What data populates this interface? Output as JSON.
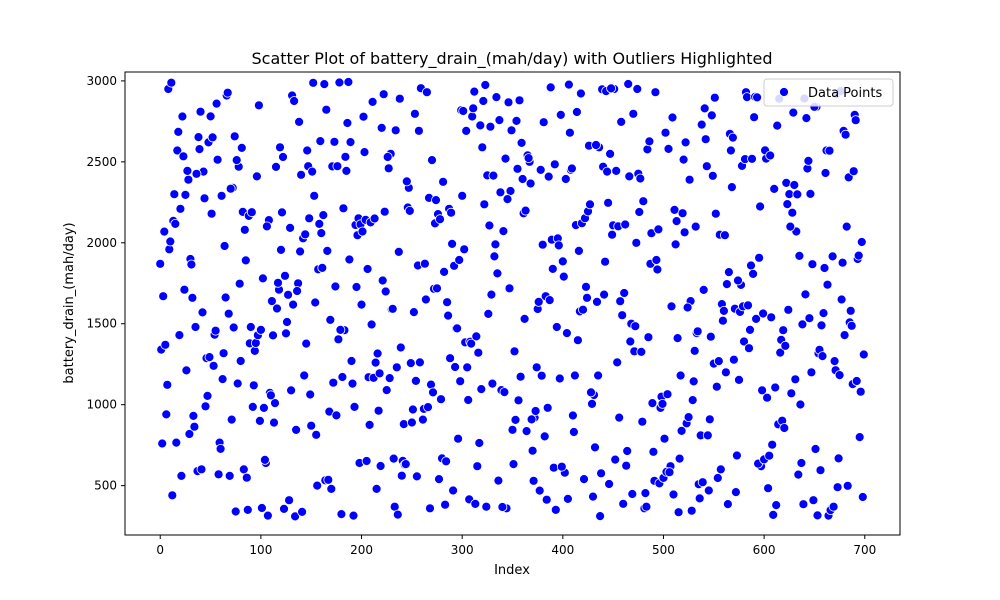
{
  "chart_data": {
    "type": "scatter",
    "title": "Scatter Plot of battery_drain_(mah/day) with Outliers Highlighted",
    "xlabel": "Index",
    "ylabel": "battery_drain_(mah/day)",
    "xlim": [
      -35,
      735
    ],
    "ylim": [
      195,
      3055
    ],
    "xticks": [
      0,
      100,
      200,
      300,
      400,
      500,
      600,
      700
    ],
    "yticks": [
      500,
      1000,
      1500,
      2000,
      2500,
      3000
    ],
    "grid": false,
    "legend": {
      "placement": "top-right",
      "entries": [
        "Data Points"
      ]
    },
    "colors": {
      "points": "#0000ff",
      "point_edge": "#ffffff"
    },
    "series": [
      {
        "name": "Data Points",
        "count": 700,
        "x_range": [
          0,
          699
        ],
        "y_range": [
          300,
          3000
        ],
        "sample_points": [
          [
            0,
            1870
          ],
          [
            1,
            1340
          ],
          [
            2,
            760
          ],
          [
            3,
            1670
          ],
          [
            5,
            1370
          ],
          [
            6,
            940
          ],
          [
            8,
            2950
          ],
          [
            9,
            1960
          ],
          [
            12,
            440
          ],
          [
            14,
            2300
          ],
          [
            17,
            2570
          ],
          [
            19,
            1430
          ],
          [
            21,
            560
          ],
          [
            22,
            2780
          ],
          [
            24,
            1710
          ],
          [
            28,
            2390
          ],
          [
            30,
            1900
          ],
          [
            32,
            1660
          ],
          [
            35,
            1480
          ],
          [
            37,
            590
          ],
          [
            40,
            2810
          ],
          [
            43,
            2440
          ],
          [
            45,
            990
          ],
          [
            48,
            2620
          ],
          [
            51,
            2180
          ],
          [
            53,
            1240
          ],
          [
            56,
            2860
          ],
          [
            58,
            570
          ],
          [
            61,
            2290
          ],
          [
            64,
            1980
          ],
          [
            66,
            2910
          ],
          [
            69,
            560
          ],
          [
            72,
            2340
          ],
          [
            75,
            340
          ],
          [
            78,
            2470
          ],
          [
            80,
            1270
          ],
          [
            84,
            2080
          ],
          [
            87,
            350
          ],
          [
            90,
            1480
          ],
          [
            93,
            1120
          ],
          [
            96,
            2410
          ],
          [
            99,
            900
          ],
          [
            102,
            1780
          ],
          [
            105,
            640
          ],
          [
            108,
            2140
          ],
          [
            111,
            1640
          ],
          [
            114,
            1010
          ],
          [
            118,
            1710
          ],
          [
            122,
            2530
          ],
          [
            125,
            1440
          ],
          [
            128,
            410
          ],
          [
            131,
            2910
          ],
          [
            134,
            310
          ],
          [
            137,
            1750
          ],
          [
            140,
            2420
          ],
          [
            143,
            1180
          ],
          [
            146,
            2570
          ],
          [
            150,
            870
          ],
          [
            153,
            2290
          ],
          [
            156,
            500
          ],
          [
            160,
            2060
          ],
          [
            163,
            2980
          ],
          [
            166,
            1950
          ],
          [
            170,
            480
          ],
          [
            174,
            1730
          ],
          [
            178,
            2990
          ],
          [
            183,
            1460
          ],
          [
            186,
            2740
          ],
          [
            190,
            1270
          ],
          [
            194,
            2110
          ],
          [
            198,
            640
          ],
          [
            203,
            2560
          ],
          [
            207,
            1170
          ],
          [
            211,
            2870
          ],
          [
            215,
            480
          ],
          [
            220,
            2710
          ],
          [
            225,
            1090
          ],
          [
            229,
            2550
          ],
          [
            233,
            370
          ],
          [
            238,
            2890
          ],
          [
            242,
            880
          ],
          [
            247,
            2340
          ],
          [
            251,
            970
          ],
          [
            256,
            1860
          ],
          [
            260,
            2950
          ],
          [
            264,
            1650
          ],
          [
            268,
            360
          ],
          [
            273,
            2120
          ],
          [
            277,
            540
          ],
          [
            282,
            1820
          ],
          [
            287,
            2210
          ],
          [
            291,
            470
          ],
          [
            296,
            790
          ],
          [
            300,
            2290
          ],
          [
            305,
            1230
          ],
          [
            310,
            2780
          ],
          [
            315,
            620
          ],
          [
            320,
            2590
          ],
          [
            324,
            370
          ],
          [
            329,
            1680
          ],
          [
            334,
            2900
          ],
          [
            339,
            1090
          ],
          [
            344,
            360
          ],
          [
            348,
            2320
          ],
          [
            352,
            1330
          ],
          [
            357,
            2880
          ],
          [
            362,
            1530
          ],
          [
            367,
            2500
          ],
          [
            372,
            920
          ],
          [
            378,
            2450
          ],
          [
            383,
            1670
          ],
          [
            388,
            2960
          ],
          [
            393,
            350
          ],
          [
            398,
            2790
          ],
          [
            402,
            580
          ],
          [
            407,
            2680
          ],
          [
            412,
            1180
          ],
          [
            416,
            1950
          ],
          [
            421,
            540
          ],
          [
            426,
            2600
          ],
          [
            431,
            1060
          ],
          [
            436,
            2590
          ],
          [
            441,
            1680
          ],
          [
            446,
            510
          ],
          [
            451,
            2950
          ],
          [
            456,
            920
          ],
          [
            461,
            1690
          ],
          [
            466,
            2410
          ],
          [
            471,
            1330
          ],
          [
            476,
            2190
          ],
          [
            481,
            360
          ],
          [
            487,
            1870
          ],
          [
            492,
            2930
          ],
          [
            497,
            980
          ],
          [
            502,
            2680
          ],
          [
            507,
            620
          ],
          [
            512,
            1990
          ],
          [
            517,
            1180
          ],
          [
            522,
            2620
          ],
          [
            527,
            1640
          ],
          [
            532,
            2100
          ],
          [
            537,
            810
          ],
          [
            542,
            2640
          ],
          [
            547,
            1420
          ],
          [
            552,
            2180
          ],
          [
            557,
            600
          ],
          [
            562,
            1200
          ],
          [
            567,
            2570
          ],
          [
            572,
            460
          ],
          [
            577,
            1740
          ],
          [
            582,
            2930
          ],
          [
            587,
            1860
          ],
          [
            592,
            1530
          ],
          [
            597,
            620
          ],
          [
            602,
            2520
          ],
          [
            607,
            1540
          ],
          [
            612,
            380
          ],
          [
            617,
            1400
          ],
          [
            622,
            2370
          ],
          [
            627,
            1070
          ],
          [
            632,
            2070
          ],
          [
            637,
            640
          ],
          [
            642,
            2770
          ],
          [
            647,
            1200
          ],
          [
            652,
            2840
          ],
          [
            657,
            1490
          ],
          [
            662,
            2570
          ],
          [
            667,
            360
          ],
          [
            672,
            2920
          ],
          [
            677,
            1650
          ],
          [
            682,
            2100
          ],
          [
            686,
            1580
          ],
          [
            690,
            2790
          ],
          [
            693,
            1900
          ],
          [
            696,
            1080
          ],
          [
            698,
            430
          ],
          [
            699,
            1310
          ]
        ]
      }
    ]
  }
}
